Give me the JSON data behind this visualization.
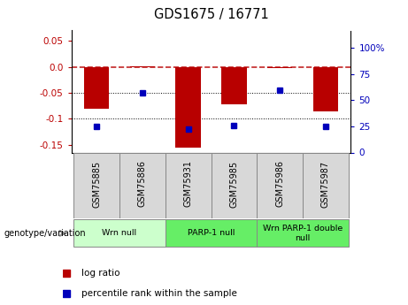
{
  "title": "GDS1675 / 16771",
  "samples": [
    "GSM75885",
    "GSM75886",
    "GSM75931",
    "GSM75985",
    "GSM75986",
    "GSM75987"
  ],
  "log_ratios": [
    -0.08,
    0.001,
    -0.155,
    -0.073,
    -0.002,
    -0.085
  ],
  "percentile_ranks": [
    25,
    57,
    22,
    26,
    60,
    25
  ],
  "ylim_left": [
    -0.165,
    0.07
  ],
  "ylim_right": [
    0,
    116.67
  ],
  "yticks_left": [
    0.05,
    0.0,
    -0.05,
    -0.1,
    -0.15
  ],
  "yticks_right": [
    100,
    75,
    50,
    25,
    0
  ],
  "hline_y0": 0.0,
  "hline_y1": -0.05,
  "hline_y2": -0.1,
  "bar_color": "#b80000",
  "dot_color": "#0000bb",
  "bar_width": 0.55,
  "genotype_groups": [
    {
      "label": "Wrn null",
      "start": 0,
      "end": 1,
      "color": "#ccffcc"
    },
    {
      "label": "PARP-1 null",
      "start": 2,
      "end": 3,
      "color": "#66ee66"
    },
    {
      "label": "Wrn PARP-1 double\nnull",
      "start": 4,
      "end": 5,
      "color": "#66ee66"
    }
  ],
  "legend_log_ratio_color": "#b80000",
  "legend_percentile_color": "#0000bb",
  "background_color": "#ffffff",
  "plot_bg_color": "#ffffff",
  "left_ytick_color": "#bb0000",
  "right_ytick_color": "#0000bb",
  "sample_box_color": "#d8d8d8",
  "sample_box_edge": "#888888"
}
